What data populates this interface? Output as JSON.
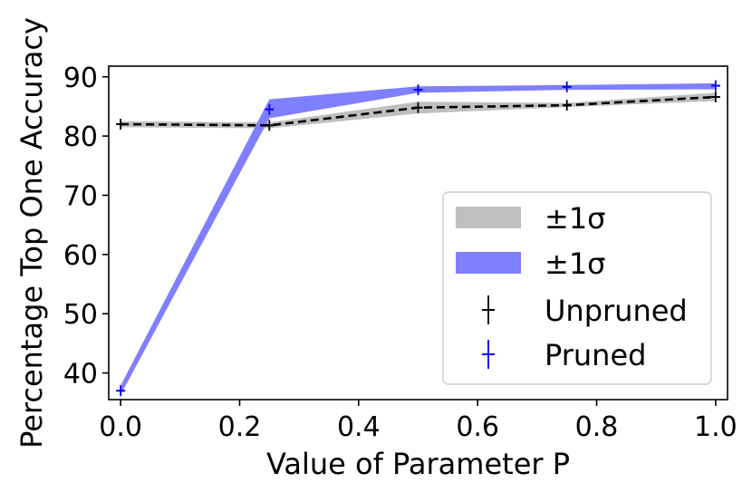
{
  "chart_data": {
    "type": "line",
    "title": "",
    "xlabel": "Value of Parameter P",
    "ylabel": "Percentage Top One Accuracy",
    "xlim": [
      -0.02,
      1.02
    ],
    "ylim": [
      35.5,
      91.8
    ],
    "xticks": [
      "0.0",
      "0.2",
      "0.4",
      "0.6",
      "0.8",
      "1.0"
    ],
    "yticks": [
      "40",
      "50",
      "60",
      "70",
      "80",
      "90"
    ],
    "grid": false,
    "legend_position": "lower-right",
    "x": [
      0.0,
      0.25,
      0.5,
      0.75,
      1.0
    ],
    "series": [
      {
        "name": "Unpruned",
        "values": [
          82.0,
          81.8,
          84.8,
          85.2,
          86.6
        ],
        "lower": [
          81.5,
          81.3,
          83.8,
          84.9,
          85.9
        ],
        "upper": [
          82.5,
          82.3,
          85.8,
          85.6,
          87.3
        ],
        "color": "#000000",
        "band_color": "#bfbfbf",
        "linestyle": "dashed"
      },
      {
        "name": "Pruned",
        "values": [
          37.0,
          84.5,
          87.8,
          88.3,
          88.5
        ],
        "lower": [
          36.3,
          83.0,
          87.3,
          87.8,
          87.9
        ],
        "upper": [
          37.9,
          86.2,
          88.4,
          88.6,
          88.9
        ],
        "color": "#0000ff",
        "band_color": "#7f7fff",
        "linestyle": "none"
      }
    ],
    "legend": [
      {
        "label": "±1σ",
        "kind": "band",
        "color": "#bfbfbf"
      },
      {
        "label": "±1σ",
        "kind": "band",
        "color": "#7f7fff"
      },
      {
        "label": "Unpruned",
        "kind": "marker",
        "color": "#000000"
      },
      {
        "label": "Pruned",
        "kind": "marker",
        "color": "#0000ff"
      }
    ]
  }
}
